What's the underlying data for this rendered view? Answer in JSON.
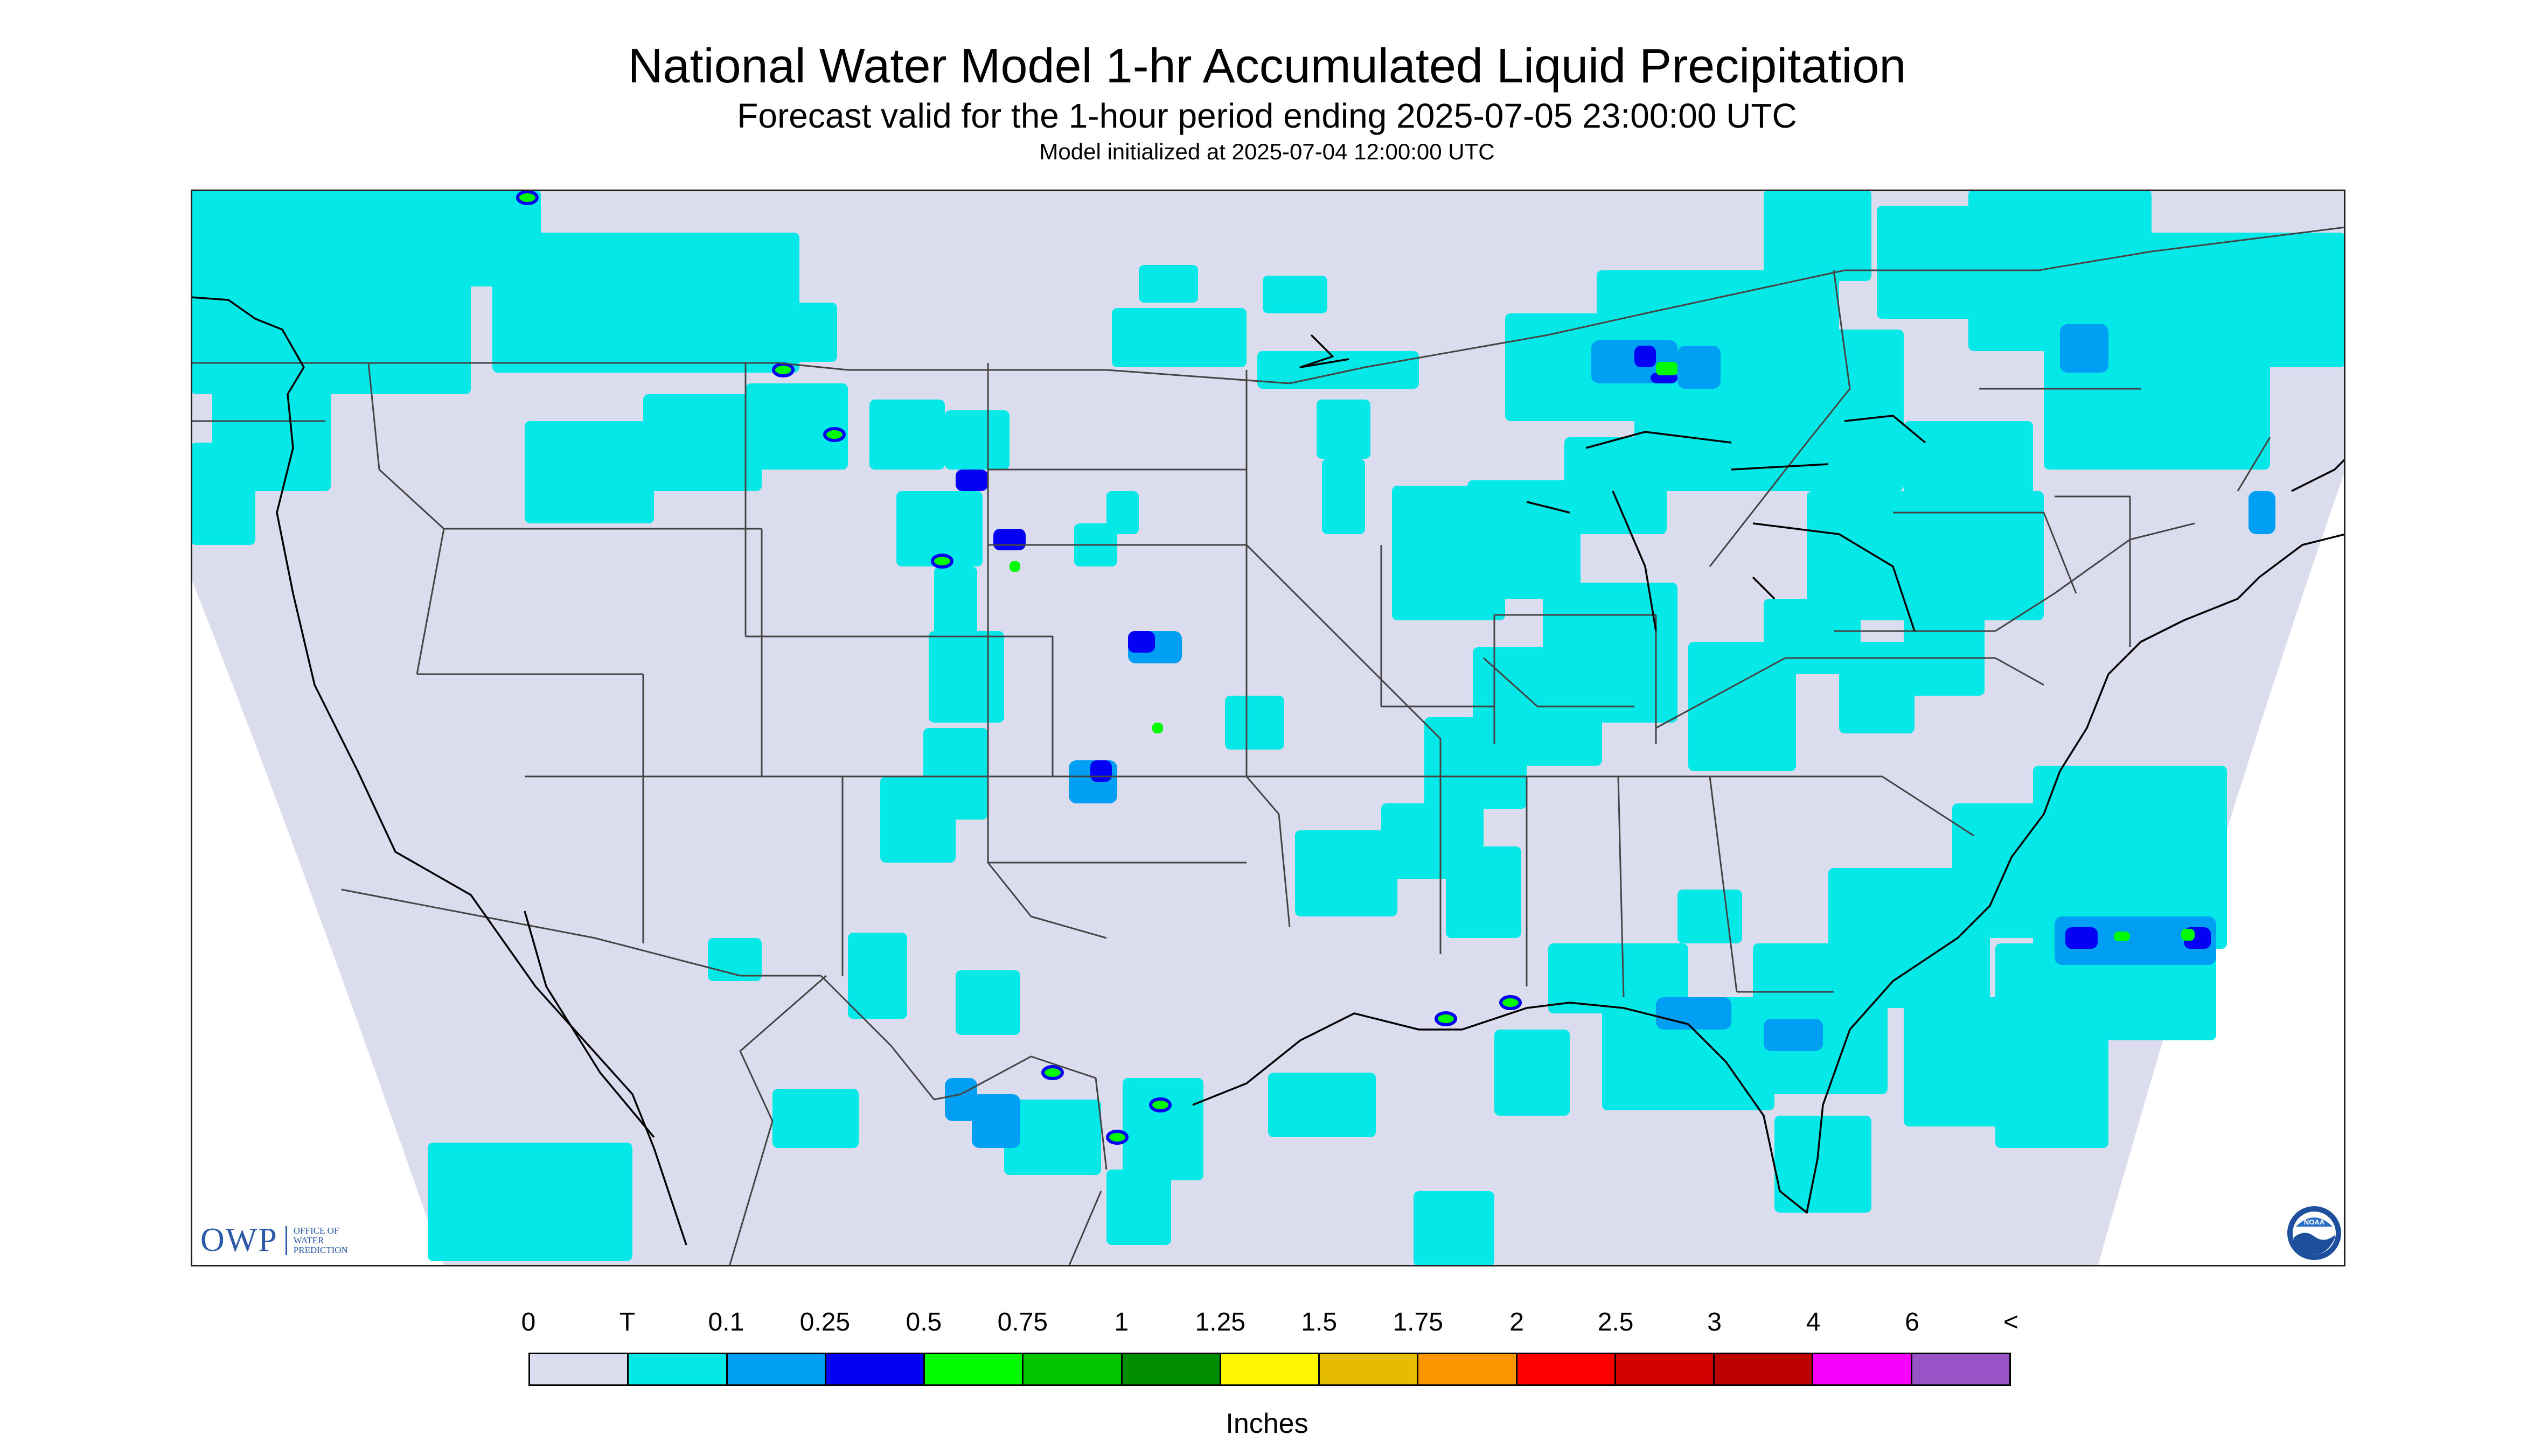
{
  "title": "National Water Model 1-hr Accumulated Liquid Precipitation",
  "subtitle": "Forecast valid for the 1-hour period ending 2025-07-05 23:00:00 UTC",
  "init_line": "Model initialized at 2025-07-04 12:00:00 UTC",
  "units": "Inches",
  "legend_ticks": [
    "0",
    "T",
    "0.1",
    "0.25",
    "0.5",
    "0.75",
    "1",
    "1.25",
    "1.5",
    "1.75",
    "2",
    "2.5",
    "3",
    "4",
    "6",
    "<"
  ],
  "legend_colors": [
    "#dcdcef",
    "#04e9e7",
    "#019ff4",
    "#0300f4",
    "#02fd02",
    "#01c501",
    "#008e00",
    "#fdf802",
    "#e5bc00",
    "#fd9500",
    "#fd0000",
    "#d40000",
    "#bc0000",
    "#f800fd",
    "#9854c6"
  ],
  "map_colors": {
    "background": "#dcdcef",
    "border": "#444444",
    "coast": "#000000",
    "light": "#04e9e7",
    "moderate": "#019ff4",
    "heavy": "#0300f4",
    "very_heavy": "#02fd02"
  },
  "logos": {
    "owp_mark": "OWP",
    "owp_text": "OFFICE OF WATER PREDICTION",
    "noaa_text": "NOAA"
  }
}
